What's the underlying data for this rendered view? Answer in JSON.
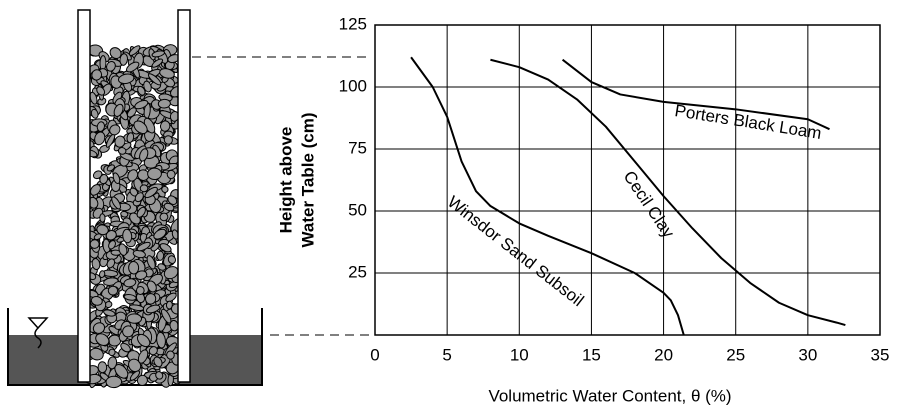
{
  "chart_data": {
    "type": "line",
    "xlabel": "Volumetric Water Content, θ (%)",
    "ylabel": [
      "Height above",
      "Water Table (cm)"
    ],
    "xlim": [
      0,
      35
    ],
    "xticks": [
      0,
      5,
      10,
      15,
      20,
      25,
      30,
      35
    ],
    "ylim": [
      0,
      125
    ],
    "yticks": [
      25,
      50,
      75,
      100,
      125
    ],
    "grid": true,
    "series": [
      {
        "name": "Winsdor Sand Subsoil",
        "color": "#000000",
        "x": [
          2.5,
          4,
          5,
          6,
          7,
          8,
          10,
          12,
          15,
          18,
          20,
          20.5,
          21,
          21.4
        ],
        "values": [
          112,
          100,
          88,
          70,
          58,
          52,
          45,
          40,
          33,
          25,
          17,
          14,
          8,
          0
        ]
      },
      {
        "name": "Cecil Clay",
        "color": "#000000",
        "x": [
          8,
          10,
          12,
          14,
          16,
          18,
          20,
          22,
          24,
          26,
          28,
          30,
          32,
          32.6
        ],
        "values": [
          111,
          108,
          103,
          95,
          84,
          70,
          56,
          43,
          31,
          21,
          13,
          8,
          5,
          4
        ]
      },
      {
        "name": "Porters Black Loam",
        "color": "#000000",
        "x": [
          13,
          15,
          17,
          20,
          25,
          30,
          31.5
        ],
        "values": [
          111,
          102,
          97,
          94,
          91,
          87,
          83
        ]
      }
    ]
  }
}
